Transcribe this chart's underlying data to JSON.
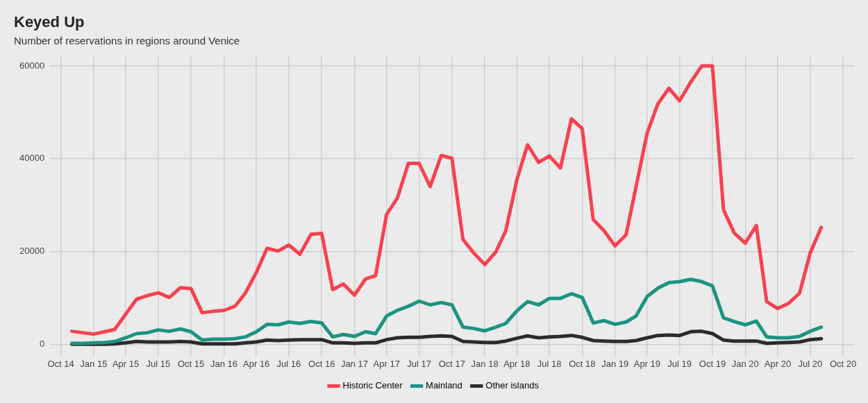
{
  "chart_data": {
    "type": "line",
    "title": "Keyed Up",
    "subtitle": "Number of reservations in regions around Venice",
    "x": [
      "2014-11",
      "2014-12",
      "2015-01",
      "2015-02",
      "2015-03",
      "2015-04",
      "2015-05",
      "2015-06",
      "2015-07",
      "2015-08",
      "2015-09",
      "2015-10",
      "2015-11",
      "2015-12",
      "2016-01",
      "2016-02",
      "2016-03",
      "2016-04",
      "2016-05",
      "2016-06",
      "2016-07",
      "2016-08",
      "2016-09",
      "2016-10",
      "2016-11",
      "2016-12",
      "2017-01",
      "2017-02",
      "2017-03",
      "2017-04",
      "2017-05",
      "2017-06",
      "2017-07",
      "2017-08",
      "2017-09",
      "2017-10",
      "2017-11",
      "2017-12",
      "2018-01",
      "2018-02",
      "2018-03",
      "2018-04",
      "2018-05",
      "2018-06",
      "2018-07",
      "2018-08",
      "2018-09",
      "2018-10",
      "2018-11",
      "2018-12",
      "2019-01",
      "2019-02",
      "2019-03",
      "2019-04",
      "2019-05",
      "2019-06",
      "2019-07",
      "2019-08",
      "2019-09",
      "2019-10",
      "2019-11",
      "2019-12",
      "2020-01",
      "2020-02",
      "2020-03",
      "2020-04",
      "2020-05",
      "2020-06",
      "2020-07",
      "2020-08"
    ],
    "series": [
      {
        "name": "Historic Center",
        "color": "#f6424f",
        "values": [
          2800,
          2500,
          2200,
          2700,
          3200,
          6500,
          9700,
          10500,
          11100,
          10100,
          12200,
          12000,
          6800,
          7100,
          7300,
          8200,
          11000,
          15500,
          20700,
          20100,
          21400,
          19400,
          23700,
          23900,
          11800,
          13000,
          10600,
          14100,
          14800,
          28000,
          31500,
          39000,
          39000,
          34000,
          40700,
          40100,
          22600,
          19700,
          17200,
          19900,
          24500,
          35500,
          43000,
          39200,
          40600,
          38000,
          48600,
          46500,
          26900,
          24500,
          21200,
          23600,
          34000,
          45500,
          51800,
          55200,
          52500,
          56500,
          60000,
          60000,
          29000,
          24000,
          21800,
          25600,
          9200,
          7700,
          8800,
          11000,
          19700,
          25200
        ]
      },
      {
        "name": "Mainland",
        "color": "#1b9480",
        "values": [
          200,
          200,
          300,
          400,
          600,
          1400,
          2300,
          2500,
          3100,
          2800,
          3300,
          2700,
          900,
          1100,
          1100,
          1200,
          1600,
          2700,
          4300,
          4200,
          4800,
          4500,
          4900,
          4600,
          1600,
          2100,
          1700,
          2700,
          2300,
          6100,
          7300,
          8200,
          9300,
          8500,
          9000,
          8500,
          3700,
          3400,
          2900,
          3700,
          4500,
          7200,
          9200,
          8500,
          9900,
          9900,
          10900,
          10100,
          4600,
          5100,
          4300,
          4800,
          6100,
          10300,
          12100,
          13300,
          13500,
          14000,
          13500,
          12600,
          5700,
          4900,
          4200,
          5000,
          1600,
          1400,
          1400,
          1700,
          2800,
          3700
        ]
      },
      {
        "name": "Other islands",
        "color": "#2b2b2b",
        "values": [
          0,
          0,
          0,
          0,
          100,
          300,
          600,
          500,
          500,
          500,
          600,
          500,
          100,
          100,
          100,
          100,
          300,
          500,
          900,
          800,
          900,
          1000,
          1000,
          1000,
          300,
          300,
          200,
          300,
          300,
          1000,
          1400,
          1500,
          1500,
          1700,
          1800,
          1700,
          600,
          500,
          400,
          400,
          700,
          1300,
          1800,
          1400,
          1600,
          1700,
          1900,
          1500,
          800,
          700,
          600,
          600,
          800,
          1400,
          1900,
          2000,
          1900,
          2700,
          2800,
          2300,
          900,
          700,
          700,
          700,
          200,
          300,
          400,
          500,
          1000,
          1200
        ]
      }
    ],
    "xlim": [
      "2014-09",
      "2020-11"
    ],
    "xticks": [
      {
        "value": "2014-10",
        "label": "Oct 14"
      },
      {
        "value": "2015-01",
        "label": "Jan 15"
      },
      {
        "value": "2015-04",
        "label": "Apr 15"
      },
      {
        "value": "2015-07",
        "label": "Jul 15"
      },
      {
        "value": "2015-10",
        "label": "Oct 15"
      },
      {
        "value": "2016-01",
        "label": "Jan 16"
      },
      {
        "value": "2016-04",
        "label": "Apr 16"
      },
      {
        "value": "2016-07",
        "label": "Jul 16"
      },
      {
        "value": "2016-10",
        "label": "Oct 16"
      },
      {
        "value": "2017-01",
        "label": "Jan 17"
      },
      {
        "value": "2017-04",
        "label": "Apr 17"
      },
      {
        "value": "2017-07",
        "label": "Jul 17"
      },
      {
        "value": "2017-10",
        "label": "Oct 17"
      },
      {
        "value": "2018-01",
        "label": "Jan 18"
      },
      {
        "value": "2018-04",
        "label": "Apr 18"
      },
      {
        "value": "2018-07",
        "label": "Jul 18"
      },
      {
        "value": "2018-10",
        "label": "Oct 18"
      },
      {
        "value": "2019-01",
        "label": "Jan 19"
      },
      {
        "value": "2019-04",
        "label": "Apr 19"
      },
      {
        "value": "2019-07",
        "label": "Jul 19"
      },
      {
        "value": "2019-10",
        "label": "Oct 19"
      },
      {
        "value": "2020-01",
        "label": "Jan 20"
      },
      {
        "value": "2020-04",
        "label": "Apr 20"
      },
      {
        "value": "2020-07",
        "label": "Jul 20"
      },
      {
        "value": "2020-10",
        "label": "Oct 20"
      }
    ],
    "ylim": [
      -2700,
      62200
    ],
    "yticks": [
      0,
      20000,
      40000,
      60000
    ],
    "grid": true,
    "legend": "bottom",
    "marker": "none",
    "line_style": "solid"
  }
}
